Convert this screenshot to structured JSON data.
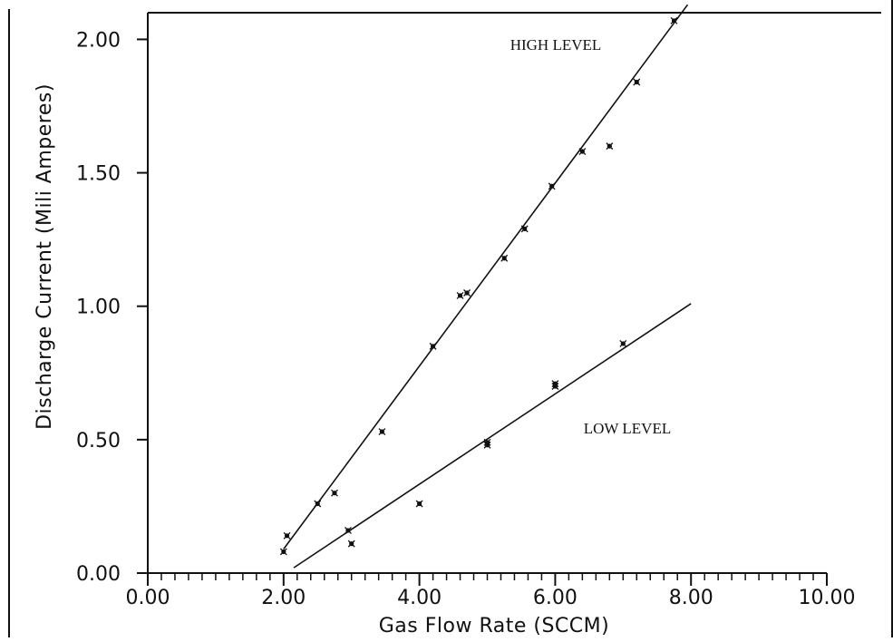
{
  "chart_data": {
    "type": "scatter",
    "title": "",
    "xlabel": "Gas Flow Rate (SCCM)",
    "ylabel": "Discharge Current (Mili Amperes)",
    "xlim": [
      0,
      10
    ],
    "ylim": [
      0,
      2.1
    ],
    "x_ticks": [
      0,
      2,
      4,
      6,
      8,
      10
    ],
    "x_tick_labels": [
      "0.00",
      "2.00",
      "4.00",
      "6.00",
      "8.00",
      "10.00"
    ],
    "y_ticks": [
      0,
      0.5,
      1.0,
      1.5,
      2.0
    ],
    "y_tick_labels": [
      "0.00",
      "0.50",
      "1.00",
      "1.50",
      "2.00"
    ],
    "x_minor_step": 0.2,
    "grid": false,
    "series": [
      {
        "name": "HIGH LEVEL",
        "x": [
          2.0,
          2.05,
          2.5,
          2.75,
          3.45,
          4.2,
          4.6,
          4.7,
          5.25,
          5.55,
          5.95,
          6.4,
          6.8,
          7.2,
          7.75
        ],
        "y": [
          0.08,
          0.14,
          0.26,
          0.3,
          0.53,
          0.85,
          1.04,
          1.05,
          1.18,
          1.29,
          1.45,
          1.58,
          1.6,
          1.84,
          2.07
        ],
        "fit": {
          "x": [
            2.0,
            7.95
          ],
          "y": [
            0.09,
            2.13
          ]
        }
      },
      {
        "name": "LOW LEVEL",
        "x": [
          2.95,
          3.0,
          4.0,
          5.0,
          5.0,
          6.0,
          6.0,
          7.0
        ],
        "y": [
          0.16,
          0.11,
          0.26,
          0.48,
          0.49,
          0.7,
          0.71,
          0.86
        ],
        "fit": {
          "x": [
            2.15,
            8.0
          ],
          "y": [
            0.02,
            1.01
          ]
        }
      }
    ]
  }
}
